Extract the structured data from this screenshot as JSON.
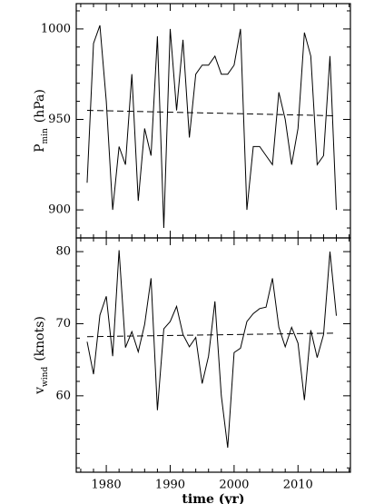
{
  "chart_data": [
    {
      "type": "line",
      "ylabel": {
        "main": "P",
        "sub": "min",
        "unit": "(hPa)"
      },
      "x": [
        1977,
        1978,
        1979,
        1980,
        1981,
        1982,
        1983,
        1984,
        1985,
        1986,
        1987,
        1988,
        1989,
        1990,
        1991,
        1992,
        1993,
        1994,
        1995,
        1996,
        1997,
        1998,
        1999,
        2000,
        2001,
        2002,
        2003,
        2004,
        2005,
        2006,
        2007,
        2008,
        2009,
        2010,
        2011,
        2012,
        2013,
        2014,
        2015,
        2016
      ],
      "series": [
        {
          "color": "#000000",
          "values": [
            915,
            992,
            1002,
            960,
            900,
            935,
            925,
            975,
            905,
            945,
            930,
            996,
            890,
            1000,
            955,
            994,
            940,
            975,
            980,
            980,
            985,
            975,
            975,
            980,
            1000,
            900,
            935,
            935,
            930,
            925,
            965,
            950,
            925,
            945,
            998,
            985,
            925,
            930,
            985,
            900
          ]
        }
      ],
      "trend": {
        "x": [
          1977,
          2016
        ],
        "values": [
          955,
          952
        ],
        "color": "#000000"
      },
      "xlim": [
        1975.3,
        2018.2
      ],
      "ylim": [
        884.5,
        1014
      ],
      "xticks": [
        1980,
        1990,
        2000,
        2010
      ],
      "show_xtick_labels": false,
      "xminorticks": [
        1976,
        1978,
        1982,
        1984,
        1986,
        1988,
        1992,
        1994,
        1996,
        1998,
        2002,
        2004,
        2006,
        2008,
        2012,
        2014,
        2016,
        2018
      ],
      "yticks": [
        900,
        950,
        1000
      ],
      "yminorticks": [
        890,
        910,
        920,
        930,
        940,
        960,
        970,
        980,
        990,
        1010
      ]
    },
    {
      "type": "line",
      "ylabel": {
        "main": "v",
        "sub": "wind",
        "unit": "(knots)"
      },
      "xlabel": "time (yr)",
      "x": [
        1977,
        1978,
        1979,
        1980,
        1981,
        1982,
        1983,
        1984,
        1985,
        1986,
        1987,
        1988,
        1989,
        1990,
        1991,
        1992,
        1993,
        1994,
        1995,
        1996,
        1997,
        1998,
        1999,
        2000,
        2001,
        2002,
        2003,
        2004,
        2005,
        2006,
        2007,
        2008,
        2009,
        2010,
        2011,
        2012,
        2013,
        2014,
        2015,
        2016
      ],
      "series": [
        {
          "color": "#000000",
          "values": [
            67.5,
            63,
            71.2,
            73.8,
            65.5,
            80.2,
            66.7,
            68.9,
            66.1,
            69.9,
            76.3,
            58,
            69.3,
            70.3,
            72.4,
            68.5,
            66.8,
            68.1,
            61.7,
            65.5,
            73.1,
            60,
            52.8,
            66,
            66.6,
            70.3,
            71.4,
            72.1,
            72.3,
            76.3,
            69.5,
            66.8,
            69.5,
            67.3,
            59.4,
            69.1,
            65.3,
            68.5,
            80,
            71.1
          ]
        }
      ],
      "trend": {
        "x": [
          1977,
          2016
        ],
        "values": [
          68.2,
          68.7
        ],
        "color": "#000000"
      },
      "xlim": [
        1975.3,
        2018.2
      ],
      "ylim": [
        49.4,
        81.9
      ],
      "xticks": [
        1980,
        1990,
        2000,
        2010
      ],
      "show_xtick_labels": true,
      "xminorticks": [
        1976,
        1978,
        1982,
        1984,
        1986,
        1988,
        1992,
        1994,
        1996,
        1998,
        2002,
        2004,
        2006,
        2008,
        2012,
        2014,
        2016,
        2018
      ],
      "yticks": [
        60,
        70,
        80
      ],
      "yminorticks": [
        50,
        52,
        54,
        56,
        58,
        62,
        64,
        66,
        68,
        72,
        74,
        76,
        78
      ]
    }
  ]
}
